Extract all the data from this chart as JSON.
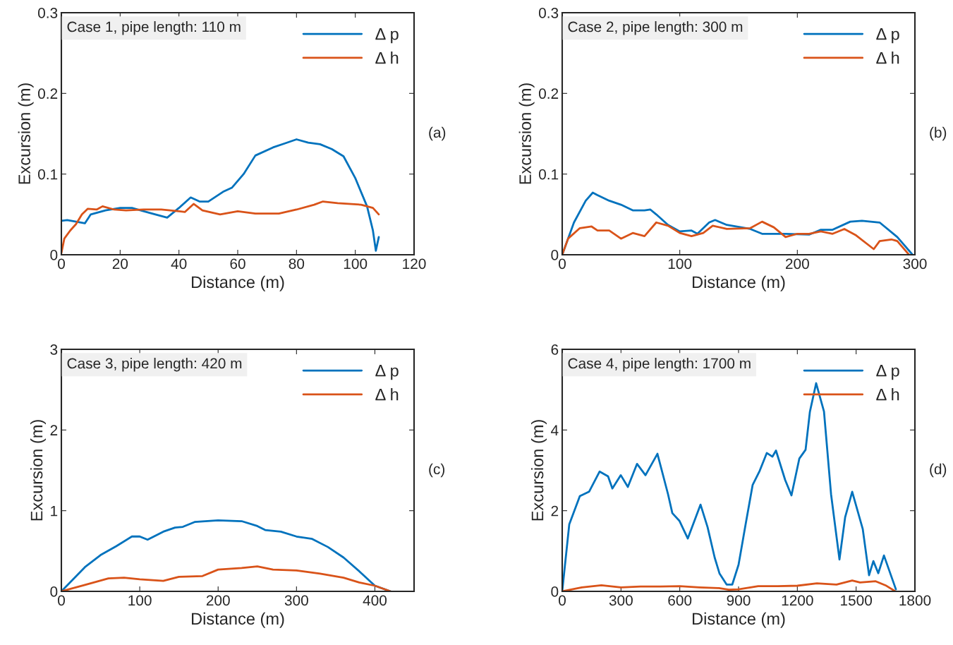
{
  "chart_data": [
    {
      "type": "line",
      "xlabel": "Distance (m)",
      "ylabel": "Excursion (m)",
      "annotations": [
        "Case 1, pipe length: 110 m",
        "(a)"
      ],
      "xlim": [
        0,
        120
      ],
      "xticks": [
        0,
        20,
        40,
        60,
        80,
        100,
        120
      ],
      "ylim": [
        0,
        0.3
      ],
      "yticks": [
        0,
        0.1,
        0.2,
        0.3
      ],
      "legend": "top right",
      "grid": false,
      "series": [
        {
          "name": "Δ p",
          "color": "#0072bd",
          "x": [
            0,
            2,
            8,
            10,
            15,
            20,
            24,
            30,
            36,
            40,
            44,
            47,
            50,
            55,
            58,
            62,
            66,
            72,
            76,
            80,
            84,
            88,
            92,
            96,
            100,
            104,
            106,
            107,
            108
          ],
          "values": [
            0.042,
            0.043,
            0.039,
            0.05,
            0.055,
            0.058,
            0.058,
            0.052,
            0.046,
            0.058,
            0.071,
            0.066,
            0.066,
            0.078,
            0.083,
            0.1,
            0.123,
            0.133,
            0.138,
            0.143,
            0.139,
            0.137,
            0.131,
            0.122,
            0.095,
            0.06,
            0.03,
            0.005,
            0.022
          ]
        },
        {
          "name": "Δ h",
          "color": "#d95319",
          "x": [
            0,
            1,
            3,
            5,
            7,
            9,
            12,
            14,
            18,
            22,
            28,
            34,
            40,
            42,
            45,
            48,
            54,
            60,
            66,
            74,
            80,
            86,
            89,
            94,
            102,
            106,
            108
          ],
          "values": [
            0.002,
            0.02,
            0.03,
            0.038,
            0.05,
            0.057,
            0.056,
            0.06,
            0.056,
            0.055,
            0.056,
            0.056,
            0.054,
            0.053,
            0.063,
            0.055,
            0.05,
            0.054,
            0.051,
            0.051,
            0.056,
            0.062,
            0.066,
            0.064,
            0.062,
            0.058,
            0.05
          ]
        }
      ]
    },
    {
      "type": "line",
      "xlabel": "Distance (m)",
      "ylabel": "Excursion (m)",
      "annotations": [
        "Case 2, pipe length: 300 m",
        "(b)"
      ],
      "xlim": [
        0,
        300
      ],
      "xticks": [
        0,
        100,
        200,
        300
      ],
      "ylim": [
        0,
        0.3
      ],
      "yticks": [
        0,
        0.1,
        0.2,
        0.3
      ],
      "legend": "top right",
      "grid": false,
      "series": [
        {
          "name": "Δ p",
          "color": "#0072bd",
          "x": [
            0,
            10,
            20,
            26,
            30,
            40,
            50,
            60,
            70,
            75,
            80,
            90,
            100,
            110,
            115,
            125,
            130,
            140,
            160,
            170,
            190,
            210,
            220,
            230,
            245,
            255,
            270,
            285,
            298
          ],
          "values": [
            0,
            0.04,
            0.067,
            0.077,
            0.074,
            0.067,
            0.062,
            0.055,
            0.055,
            0.056,
            0.05,
            0.037,
            0.029,
            0.03,
            0.026,
            0.04,
            0.043,
            0.037,
            0.032,
            0.026,
            0.026,
            0.025,
            0.031,
            0.031,
            0.041,
            0.042,
            0.04,
            0.022,
            0
          ]
        },
        {
          "name": "Δ h",
          "color": "#d95319",
          "x": [
            0,
            5,
            15,
            25,
            30,
            40,
            50,
            60,
            70,
            80,
            90,
            100,
            110,
            120,
            128,
            140,
            160,
            170,
            180,
            190,
            200,
            210,
            220,
            230,
            240,
            250,
            265,
            270,
            280,
            285,
            295
          ],
          "values": [
            0,
            0.02,
            0.033,
            0.035,
            0.03,
            0.03,
            0.02,
            0.027,
            0.023,
            0.04,
            0.036,
            0.027,
            0.023,
            0.027,
            0.036,
            0.032,
            0.033,
            0.041,
            0.034,
            0.022,
            0.026,
            0.026,
            0.029,
            0.026,
            0.032,
            0.024,
            0.007,
            0.017,
            0.019,
            0.017,
            0
          ]
        }
      ]
    },
    {
      "type": "line",
      "xlabel": "Distance (m)",
      "ylabel": "Excursion (m)",
      "annotations": [
        "Case 3, pipe length: 420 m",
        "(c)"
      ],
      "xlim": [
        0,
        450
      ],
      "xticks": [
        0,
        100,
        200,
        300,
        400
      ],
      "ylim": [
        0,
        3
      ],
      "yticks": [
        0,
        1,
        2,
        3
      ],
      "legend": "top right",
      "grid": false,
      "series": [
        {
          "name": "Δ p",
          "color": "#0072bd",
          "x": [
            0,
            30,
            50,
            70,
            90,
            100,
            110,
            130,
            145,
            155,
            170,
            200,
            230,
            250,
            260,
            280,
            300,
            320,
            340,
            360,
            380,
            400,
            420
          ],
          "values": [
            0,
            0.3,
            0.45,
            0.56,
            0.68,
            0.68,
            0.64,
            0.74,
            0.79,
            0.8,
            0.86,
            0.88,
            0.87,
            0.81,
            0.76,
            0.74,
            0.68,
            0.65,
            0.55,
            0.42,
            0.25,
            0.07,
            0
          ]
        },
        {
          "name": "Δ h",
          "color": "#d95319",
          "x": [
            0,
            30,
            60,
            80,
            100,
            130,
            150,
            180,
            200,
            230,
            250,
            270,
            300,
            330,
            360,
            380,
            400,
            420
          ],
          "values": [
            0,
            0.08,
            0.16,
            0.17,
            0.15,
            0.13,
            0.18,
            0.19,
            0.27,
            0.29,
            0.31,
            0.27,
            0.26,
            0.22,
            0.17,
            0.11,
            0.07,
            0
          ]
        }
      ]
    },
    {
      "type": "line",
      "xlabel": "Distance (m)",
      "ylabel": "Excursion (m)",
      "annotations": [
        "Case 4, pipe length: 1700 m",
        "(d)"
      ],
      "xlim": [
        0,
        1800
      ],
      "xticks": [
        0,
        300,
        600,
        900,
        1200,
        1500,
        1800
      ],
      "ylim": [
        0,
        6
      ],
      "yticks": [
        0,
        2,
        4,
        6
      ],
      "legend": "top right",
      "grid": false,
      "series": [
        {
          "name": "Δ p",
          "color": "#0072bd",
          "x": [
            0,
            36,
            90,
            137,
            191,
            234,
            256,
            299,
            335,
            382,
            425,
            486,
            540,
            562,
            598,
            641,
            706,
            742,
            778,
            803,
            839,
            868,
            900,
            936,
            972,
            1008,
            1044,
            1073,
            1091,
            1138,
            1170,
            1210,
            1242,
            1264,
            1296,
            1336,
            1372,
            1415,
            1444,
            1480,
            1534,
            1566,
            1588,
            1613,
            1642,
            1703
          ],
          "values": [
            0,
            1.66,
            2.36,
            2.47,
            2.97,
            2.85,
            2.55,
            2.88,
            2.59,
            3.16,
            2.88,
            3.41,
            2.41,
            1.94,
            1.75,
            1.31,
            2.15,
            1.59,
            0.84,
            0.44,
            0.17,
            0.17,
            0.66,
            1.66,
            2.64,
            2.99,
            3.43,
            3.34,
            3.49,
            2.76,
            2.38,
            3.29,
            3.51,
            4.45,
            5.16,
            4.46,
            2.41,
            0.79,
            1.84,
            2.47,
            1.54,
            0.4,
            0.75,
            0.45,
            0.89,
            0.05
          ]
        },
        {
          "name": "Δ h",
          "color": "#d95319",
          "x": [
            0,
            100,
            200,
            300,
            400,
            500,
            600,
            700,
            800,
            850,
            900,
            1000,
            1100,
            1200,
            1300,
            1400,
            1480,
            1520,
            1600,
            1650,
            1700
          ],
          "values": [
            0,
            0.1,
            0.15,
            0.1,
            0.12,
            0.12,
            0.13,
            0.1,
            0.08,
            0.04,
            0.05,
            0.13,
            0.13,
            0.14,
            0.2,
            0.17,
            0.27,
            0.22,
            0.25,
            0.15,
            0
          ]
        }
      ]
    }
  ]
}
